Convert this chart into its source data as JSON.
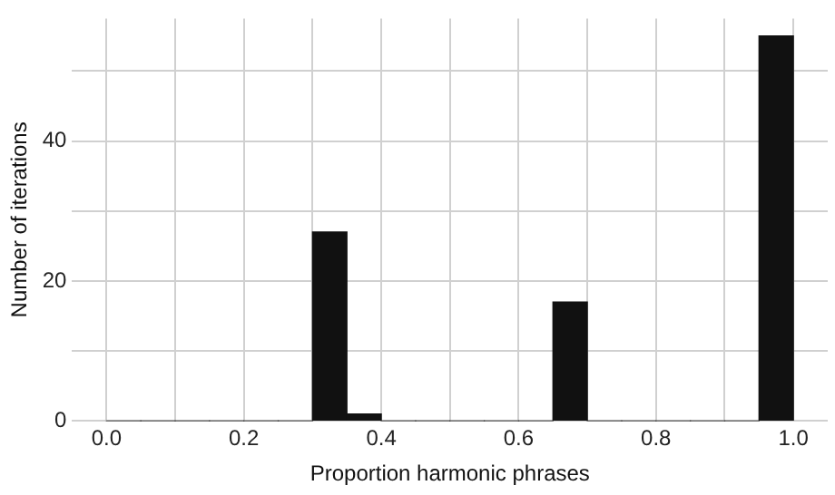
{
  "chart_data": {
    "type": "histogram",
    "xlabel": "Proportion harmonic phrases",
    "ylabel": "Number of iterations",
    "bins": [
      0,
      0.05,
      0.1,
      0.15,
      0.2,
      0.25,
      0.3,
      0.35,
      0.4,
      0.45,
      0.5,
      0.55,
      0.6,
      0.65,
      0.7,
      0.75,
      0.8,
      0.85,
      0.9,
      0.95,
      1.0
    ],
    "values": [
      0,
      0,
      0,
      0,
      0,
      0,
      27,
      1,
      0,
      0,
      0,
      0,
      0,
      17,
      0,
      0,
      0,
      0,
      0,
      55
    ],
    "color": "#111111",
    "xlim": [
      -0.05,
      1.05
    ],
    "xticks": [
      {
        "value": 0,
        "label": "0.0"
      },
      {
        "value": 0.1,
        "label": null
      },
      {
        "value": 0.2,
        "label": "0.2"
      },
      {
        "value": 0.3,
        "label": null
      },
      {
        "value": 0.4,
        "label": "0.4"
      },
      {
        "value": 0.5,
        "label": null
      },
      {
        "value": 0.6,
        "label": "0.6"
      },
      {
        "value": 0.7,
        "label": null
      },
      {
        "value": 0.8,
        "label": "0.8"
      },
      {
        "value": 0.9,
        "label": null
      },
      {
        "value": 1.0,
        "label": "1.0"
      }
    ],
    "ylim": [
      0,
      57.5
    ],
    "yticks": [
      0,
      {
        "value": 10,
        "label": null
      },
      20,
      {
        "value": 30,
        "label": null
      },
      40,
      {
        "value": 50,
        "label": null
      }
    ],
    "grid": true
  }
}
